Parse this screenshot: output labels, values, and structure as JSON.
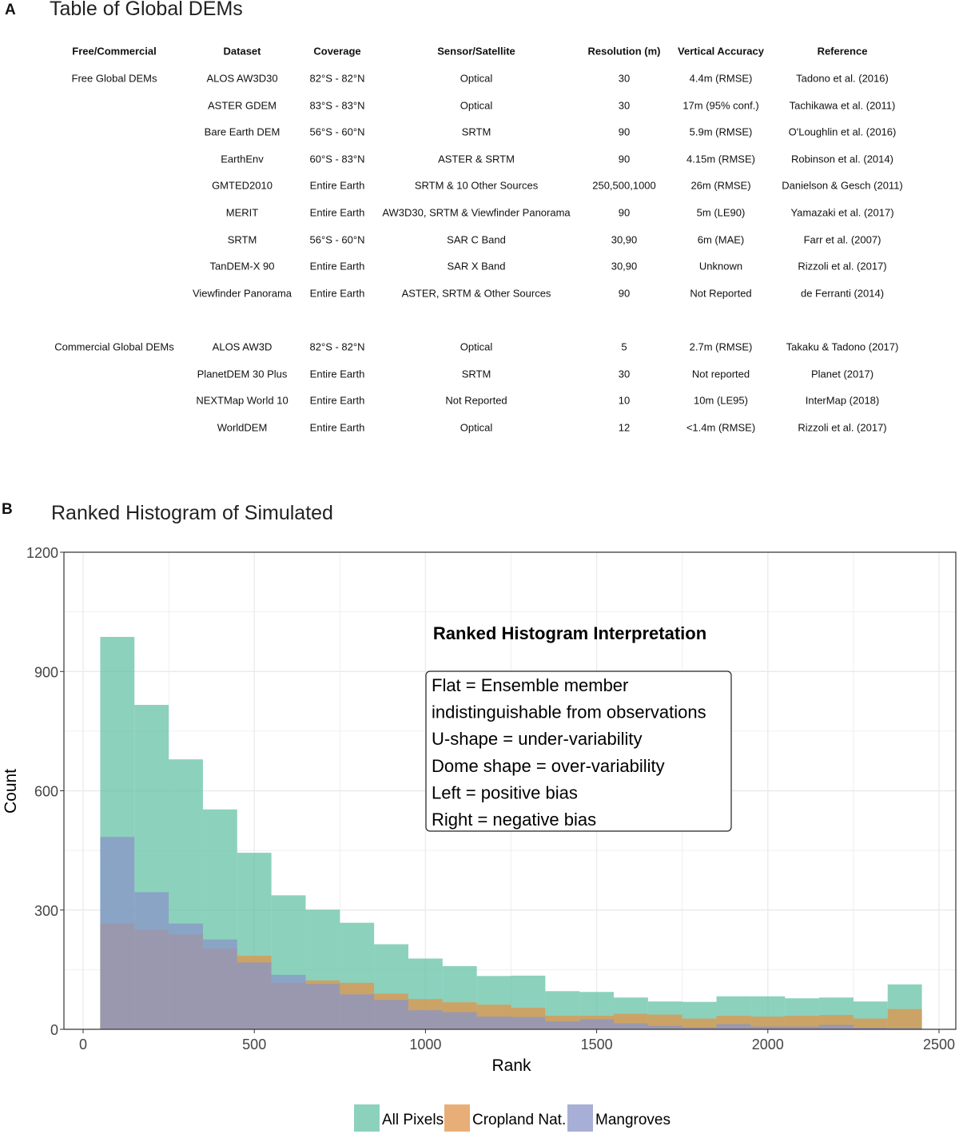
{
  "panel_a": {
    "label": "A",
    "title": "Table of Global DEMs",
    "columns": [
      "Free/Commercial",
      "Dataset",
      "Coverage",
      "Sensor/Satellite",
      "Resolution (m)",
      "Vertical Accuracy",
      "Reference"
    ],
    "rows": [
      [
        "Free Global DEMs",
        "ALOS AW3D30",
        "82°S - 82°N",
        "Optical",
        "30",
        "4.4m (RMSE)",
        "Tadono et al. (2016)"
      ],
      [
        "",
        "ASTER GDEM",
        "83°S - 83°N",
        "Optical",
        "30",
        "17m (95% conf.)",
        "Tachikawa et al. (2011)"
      ],
      [
        "",
        "Bare Earth DEM",
        "56°S - 60°N",
        "SRTM",
        "90",
        "5.9m (RMSE)",
        "O'Loughlin et al. (2016)"
      ],
      [
        "",
        "EarthEnv",
        "60°S - 83°N",
        "ASTER & SRTM",
        "90",
        "4.15m (RMSE)",
        "Robinson et al. (2014)"
      ],
      [
        "",
        "GMTED2010",
        "Entire Earth",
        "SRTM & 10 Other Sources",
        "250,500,1000",
        "26m (RMSE)",
        "Danielson & Gesch (2011)"
      ],
      [
        "",
        "MERIT",
        "Entire Earth",
        "AW3D30, SRTM & Viewfinder Panorama",
        "90",
        "5m (LE90)",
        "Yamazaki et al. (2017)"
      ],
      [
        "",
        "SRTM",
        "56°S - 60°N",
        "SAR C Band",
        "30,90",
        "6m (MAE)",
        "Farr et al. (2007)"
      ],
      [
        "",
        "TanDEM-X 90",
        "Entire Earth",
        "SAR X Band",
        "30,90",
        "Unknown",
        "Rizzoli et al. (2017)"
      ],
      [
        "",
        "Viewfinder Panorama",
        "Entire Earth",
        "ASTER, SRTM & Other Sources",
        "90",
        "Not Reported",
        "de Ferranti (2014)"
      ],
      null,
      [
        "Commercial Global DEMs",
        "ALOS AW3D",
        "82°S - 82°N",
        "Optical",
        "5",
        "2.7m (RMSE)",
        "Takaku & Tadono (2017)"
      ],
      [
        "",
        "PlanetDEM 30 Plus",
        "Entire Earth",
        "SRTM",
        "30",
        "Not reported",
        "Planet (2017)"
      ],
      [
        "",
        "NEXTMap World 10",
        "Entire Earth",
        "Not Reported",
        "10",
        "10m (LE95)",
        "InterMap (2018)"
      ],
      [
        "",
        "WorldDEM",
        "Entire Earth",
        "Optical",
        "12",
        "<1.4m (RMSE)",
        "Rizzoli et al. (2017)"
      ]
    ]
  },
  "panel_b": {
    "label": "B",
    "title": "Ranked Histogram of Simulated"
  },
  "chart_data": {
    "type": "bar",
    "subtype": "overlaid histogram",
    "xlabel": "Rank",
    "ylabel": "Count",
    "xlim": [
      0,
      2500
    ],
    "ylim": [
      0,
      1200
    ],
    "xticks": [
      "0",
      "500",
      "1000",
      "1500",
      "2000",
      "2500"
    ],
    "yticks": [
      "0",
      "300",
      "600",
      "900",
      "1200"
    ],
    "grid": true,
    "legend_position": "bottom",
    "bin_edges": [
      50,
      150,
      250,
      350,
      450,
      550,
      650,
      750,
      850,
      950,
      1050,
      1150,
      1250,
      1350,
      1450,
      1550,
      1650,
      1750,
      1850,
      1950,
      2050,
      2150,
      2250,
      2350,
      2450
    ],
    "series": [
      {
        "name": "All Pixels",
        "color": "#66c2a5",
        "values": [
          987,
          816,
          679,
          553,
          444,
          337,
          301,
          268,
          214,
          178,
          159,
          134,
          135,
          96,
          94,
          80,
          70,
          69,
          83,
          83,
          78,
          80,
          70,
          113
        ]
      },
      {
        "name": "Cropland Nat.",
        "color": "#e0934a",
        "values": [
          266,
          250,
          238,
          203,
          185,
          117,
          123,
          117,
          90,
          76,
          68,
          62,
          54,
          34,
          34,
          39,
          37,
          27,
          34,
          32,
          34,
          36,
          27,
          51
        ]
      },
      {
        "name": "Mangroves",
        "color": "#8a94c8",
        "values": [
          484,
          345,
          266,
          226,
          168,
          137,
          114,
          88,
          74,
          48,
          43,
          32,
          31,
          20,
          25,
          15,
          9,
          5,
          13,
          7,
          7,
          11,
          4,
          3
        ]
      }
    ],
    "annotation": {
      "title": "Ranked Histogram Interpretation",
      "lines": [
        "Flat = Ensemble member",
        "indistinguishable from observations",
        "U-shape = under-variability",
        "Dome shape = over-variability",
        "Left = positive bias",
        "Right = negative bias"
      ]
    }
  }
}
